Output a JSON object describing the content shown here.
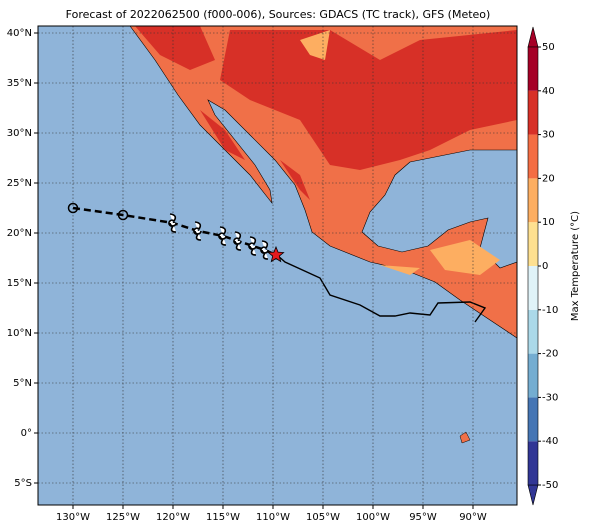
{
  "title": "Forecast of 2022062500 (f000-006), Sources: GDACS (TC track), GFS (Meteo)",
  "map": {
    "lonlim": [
      -133.5,
      -85.6
    ],
    "latlim": [
      -7.2,
      40.7
    ],
    "lonticks": [
      {
        "value": -130,
        "label": "130°W"
      },
      {
        "value": -125,
        "label": "125°W"
      },
      {
        "value": -120,
        "label": "120°W"
      },
      {
        "value": -115,
        "label": "115°W"
      },
      {
        "value": -110,
        "label": "110°W"
      },
      {
        "value": -105,
        "label": "105°W"
      },
      {
        "value": -100,
        "label": "100°W"
      },
      {
        "value": -95,
        "label": "95°W"
      },
      {
        "value": -90,
        "label": "90°W"
      }
    ],
    "latticks": [
      {
        "value": -5,
        "label": "5°S"
      },
      {
        "value": 0,
        "label": "0°"
      },
      {
        "value": 5,
        "label": "5°N"
      },
      {
        "value": 10,
        "label": "10°N"
      },
      {
        "value": 15,
        "label": "15°N"
      },
      {
        "value": 20,
        "label": "20°N"
      },
      {
        "value": 25,
        "label": "25°N"
      },
      {
        "value": 30,
        "label": "30°N"
      },
      {
        "value": 35,
        "label": "35°N"
      },
      {
        "value": 40,
        "label": "40°N"
      }
    ],
    "grid": true,
    "track": {
      "lon": [
        -130,
        -125,
        -120,
        -117.5,
        -115,
        -113.5,
        -112,
        -110.8,
        -109.7
      ],
      "lat": [
        22.5,
        21.8,
        21,
        20.2,
        19.7,
        19.2,
        18.7,
        18.3,
        17.8
      ],
      "markers": [
        "circle",
        "circle",
        "storm",
        "storm",
        "storm",
        "storm",
        "storm",
        "storm",
        "star"
      ]
    }
  },
  "colorbar": {
    "label": "Max Temperature (°C)",
    "ticks": [
      -50,
      -40,
      -30,
      -20,
      -10,
      0,
      10,
      20,
      30,
      40,
      50
    ],
    "colors": [
      "#313695",
      "#4575b4",
      "#74add1",
      "#abd9e9",
      "#e0f3f8",
      "#fee090",
      "#fdae61",
      "#f46d43",
      "#d73027",
      "#a50026"
    ]
  }
}
